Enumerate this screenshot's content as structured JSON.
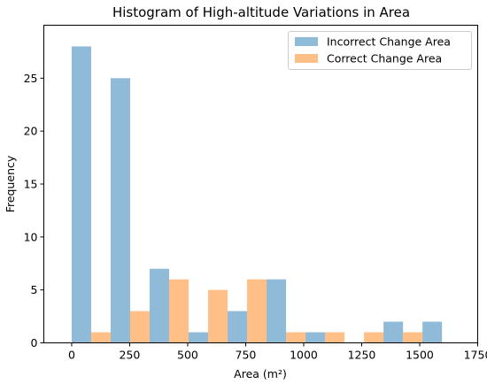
{
  "chart_data": {
    "type": "bar",
    "title": "Histogram of High-altitude Variations in Area",
    "xlabel": "Area (m²)",
    "ylabel": "Frequency",
    "xlim": [
      -120,
      1750
    ],
    "ylim": [
      0,
      30
    ],
    "xticks": [
      0,
      250,
      500,
      750,
      1000,
      1250,
      1500,
      1750
    ],
    "yticks": [
      0,
      5,
      10,
      15,
      20,
      25
    ],
    "xtick_labels": [
      "0",
      "250",
      "500",
      "750",
      "1000",
      "1250",
      "1500",
      "1750"
    ],
    "ytick_labels": [
      "0",
      "5",
      "10",
      "15",
      "20",
      "25"
    ],
    "bin_edges": [
      0,
      168,
      336,
      504,
      672,
      840,
      1008,
      1176,
      1344,
      1512,
      1680
    ],
    "grid": false,
    "legend_position": "top-right",
    "series": [
      {
        "name": "Incorrect Change Area",
        "color": "#1f77b4",
        "opacity": 0.5,
        "values": [
          28,
          25,
          7,
          1,
          3,
          6,
          1,
          0,
          2,
          2
        ]
      },
      {
        "name": "Correct Change Area",
        "color": "#ff7f0e",
        "opacity": 0.5,
        "values": [
          1,
          3,
          6,
          5,
          6,
          1,
          1,
          1,
          1,
          0
        ]
      }
    ]
  }
}
